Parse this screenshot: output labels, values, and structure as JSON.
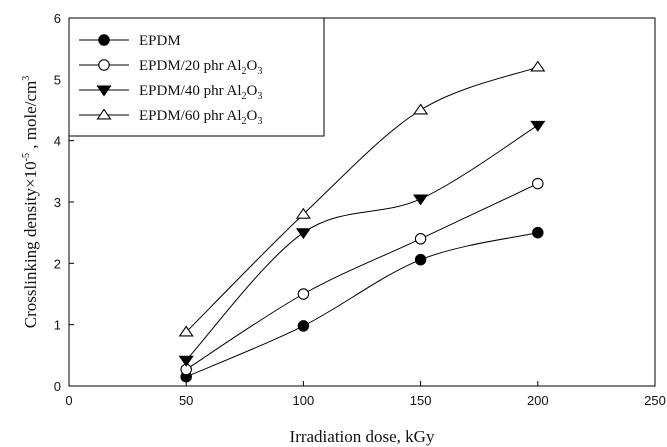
{
  "chart_data": {
    "type": "line",
    "xlabel": "Irradiation dose, kGy",
    "ylabel": {
      "prefix": "Crosslinking density×10",
      "exponent": "-5",
      "suffix": " , mole/cm",
      "unit_exponent": "3"
    },
    "xlim": [
      0,
      250
    ],
    "ylim": [
      0,
      6
    ],
    "x_ticks": [
      "0",
      "50",
      "100",
      "150",
      "200",
      "250"
    ],
    "y_ticks": [
      "0",
      "1",
      "2",
      "3",
      "4",
      "5",
      "6"
    ],
    "grid": false,
    "legend_position": "top-left",
    "x": [
      50,
      100,
      150,
      200
    ],
    "series": [
      {
        "name": "EPDM",
        "legend_parts": [
          "EPDM"
        ],
        "marker": "filled-circle",
        "values": [
          0.15,
          0.98,
          2.06,
          2.5
        ]
      },
      {
        "name": "EPDM/20 phr Al2O3",
        "legend_parts": [
          "EPDM/20 phr Al",
          "2",
          "O",
          "3"
        ],
        "marker": "open-circle",
        "values": [
          0.27,
          1.5,
          2.4,
          3.3
        ]
      },
      {
        "name": "EPDM/40 phr Al2O3",
        "legend_parts": [
          "EPDM/40 phr Al",
          "2",
          "O",
          "3"
        ],
        "marker": "filled-triangle-down",
        "values": [
          0.42,
          2.5,
          3.05,
          4.25
        ]
      },
      {
        "name": "EPDM/60 phr Al2O3",
        "legend_parts": [
          "EPDM/60 phr Al",
          "2",
          "O",
          "3"
        ],
        "marker": "open-triangle-up",
        "values": [
          0.88,
          2.8,
          4.5,
          5.2
        ]
      }
    ]
  }
}
